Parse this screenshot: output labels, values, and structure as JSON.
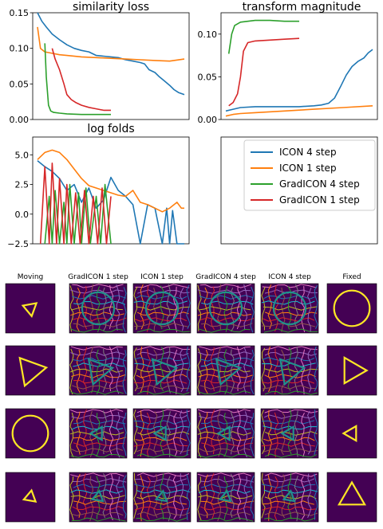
{
  "colors": {
    "icon4": "#1f77b4",
    "icon1": "#ff7f0e",
    "grad4": "#2ca02c",
    "grad1": "#d62728",
    "img_bg": "#440154",
    "img_fg": "#fde725",
    "img_mid": "#21918c",
    "grid_palette": [
      "#e377c2",
      "#9467bd",
      "#1f77b4",
      "#17becf",
      "#bcbd22",
      "#ff7f0e",
      "#d62728",
      "#8c564b",
      "#2ca02c",
      "#7f7f7f"
    ]
  },
  "chart_data": [
    {
      "type": "line",
      "title": "similarity loss",
      "xlabel": "",
      "ylabel": "",
      "ylim": [
        0,
        0.15
      ],
      "yticks": [
        {
          "v": 0,
          "label": "0.00"
        },
        {
          "v": 0.05,
          "label": "0.05"
        },
        {
          "v": 0.1,
          "label": "0.10"
        },
        {
          "v": 0.15,
          "label": "0.15"
        }
      ],
      "xlim": [
        0,
        1
      ],
      "grid": false,
      "series": [
        {
          "key": "icon4",
          "x": [
            0,
            0.03,
            0.06,
            0.1,
            0.15,
            0.2,
            0.25,
            0.3,
            0.35,
            0.4,
            0.45,
            0.5,
            0.55,
            0.6,
            0.65,
            0.7,
            0.73,
            0.76,
            0.8,
            0.83,
            0.86,
            0.9,
            0.93,
            0.96,
            1.0
          ],
          "y": [
            0.15,
            0.138,
            0.13,
            0.12,
            0.112,
            0.105,
            0.1,
            0.097,
            0.095,
            0.09,
            0.089,
            0.088,
            0.087,
            0.084,
            0.082,
            0.08,
            0.078,
            0.07,
            0.066,
            0.06,
            0.055,
            0.048,
            0.042,
            0.038,
            0.035
          ]
        },
        {
          "key": "icon1",
          "x": [
            0,
            0.02,
            0.05,
            0.1,
            0.15,
            0.2,
            0.3,
            0.4,
            0.5,
            0.6,
            0.7,
            0.8,
            0.9,
            1.0
          ],
          "y": [
            0.13,
            0.1,
            0.095,
            0.093,
            0.091,
            0.09,
            0.088,
            0.087,
            0.086,
            0.085,
            0.084,
            0.083,
            0.082,
            0.085
          ]
        },
        {
          "key": "grad4",
          "x": [
            0.05,
            0.06,
            0.075,
            0.09,
            0.11,
            0.15,
            0.2,
            0.3,
            0.4,
            0.5
          ],
          "y": [
            0.107,
            0.06,
            0.02,
            0.012,
            0.01,
            0.009,
            0.008,
            0.007,
            0.007,
            0.007
          ]
        },
        {
          "key": "grad1",
          "x": [
            0.1,
            0.12,
            0.15,
            0.18,
            0.2,
            0.23,
            0.26,
            0.3,
            0.35,
            0.4,
            0.45,
            0.5
          ],
          "y": [
            0.1,
            0.085,
            0.07,
            0.05,
            0.035,
            0.028,
            0.024,
            0.02,
            0.017,
            0.015,
            0.013,
            0.013
          ]
        }
      ]
    },
    {
      "type": "line",
      "title": "transform magnitude",
      "xlabel": "",
      "ylabel": "",
      "ylim": [
        0,
        0.125
      ],
      "yticks": [
        {
          "v": 0,
          "label": "0.00"
        },
        {
          "v": 0.05,
          "label": "0.05"
        },
        {
          "v": 0.1,
          "label": "0.10"
        }
      ],
      "xlim": [
        0,
        1
      ],
      "grid": false,
      "series": [
        {
          "key": "icon4",
          "x": [
            0,
            0.05,
            0.1,
            0.2,
            0.3,
            0.4,
            0.5,
            0.6,
            0.65,
            0.7,
            0.74,
            0.78,
            0.82,
            0.86,
            0.9,
            0.94,
            0.97,
            1.0
          ],
          "y": [
            0.01,
            0.012,
            0.014,
            0.015,
            0.015,
            0.015,
            0.015,
            0.016,
            0.017,
            0.019,
            0.025,
            0.038,
            0.052,
            0.062,
            0.068,
            0.072,
            0.078,
            0.082
          ]
        },
        {
          "key": "icon1",
          "x": [
            0,
            0.05,
            0.1,
            0.2,
            0.4,
            0.6,
            0.8,
            1.0
          ],
          "y": [
            0.004,
            0.006,
            0.007,
            0.008,
            0.01,
            0.012,
            0.014,
            0.016
          ]
        },
        {
          "key": "grad4",
          "x": [
            0.02,
            0.04,
            0.06,
            0.08,
            0.1,
            0.15,
            0.2,
            0.3,
            0.4,
            0.5
          ],
          "y": [
            0.077,
            0.1,
            0.11,
            0.112,
            0.114,
            0.115,
            0.116,
            0.116,
            0.115,
            0.115
          ]
        },
        {
          "key": "grad1",
          "x": [
            0.02,
            0.05,
            0.08,
            0.1,
            0.12,
            0.15,
            0.2,
            0.3,
            0.4,
            0.5
          ],
          "y": [
            0.016,
            0.02,
            0.03,
            0.05,
            0.08,
            0.09,
            0.092,
            0.093,
            0.094,
            0.095
          ]
        }
      ]
    },
    {
      "type": "line",
      "title": "log folds",
      "xlabel": "",
      "ylabel": "",
      "ylim": [
        -2.5,
        6.5
      ],
      "yticks": [
        {
          "v": -2.5,
          "label": "−2.5"
        },
        {
          "v": 0,
          "label": "0.0"
        },
        {
          "v": 2.5,
          "label": "2.5"
        },
        {
          "v": 5,
          "label": "5.0"
        }
      ],
      "xlim": [
        0,
        1
      ],
      "grid": false,
      "series": [
        {
          "key": "icon4",
          "x": [
            0,
            0.05,
            0.1,
            0.15,
            0.2,
            0.25,
            0.3,
            0.35,
            0.4,
            0.45,
            0.5,
            0.55,
            0.6,
            0.65,
            0.7,
            0.75,
            0.8,
            0.85,
            0.88,
            0.9,
            0.92,
            0.95,
            0.98,
            1.0
          ],
          "y": [
            4.5,
            4.0,
            3.6,
            3.0,
            2.0,
            2.5,
            1.0,
            2.2,
            0.5,
            1.2,
            3.1,
            2.0,
            1.5,
            0.8,
            -2.5,
            0.8,
            0.5,
            -2.5,
            0.5,
            -2.5,
            0.3,
            -2.5,
            -2.5,
            -2.5
          ]
        },
        {
          "key": "icon1",
          "x": [
            0,
            0.05,
            0.1,
            0.15,
            0.2,
            0.25,
            0.3,
            0.35,
            0.4,
            0.45,
            0.5,
            0.55,
            0.6,
            0.65,
            0.7,
            0.75,
            0.8,
            0.85,
            0.9,
            0.95,
            0.98,
            1.0
          ],
          "y": [
            4.6,
            5.2,
            5.4,
            5.2,
            4.6,
            3.8,
            3.0,
            2.4,
            2.2,
            2.0,
            1.8,
            1.6,
            1.5,
            2.0,
            1.0,
            0.8,
            0.5,
            0.2,
            0.5,
            1.0,
            0.5,
            0.5
          ]
        },
        {
          "key": "grad4",
          "x": [
            0.05,
            0.08,
            0.1,
            0.12,
            0.15,
            0.18,
            0.2,
            0.22,
            0.25,
            0.28,
            0.3,
            0.33,
            0.36,
            0.4,
            0.43,
            0.46,
            0.5
          ],
          "y": [
            -2.5,
            1.5,
            -2.5,
            2.0,
            -2.5,
            1.0,
            -2.5,
            2.5,
            -2.5,
            1.8,
            -2.5,
            2.2,
            -2.5,
            1.5,
            -2.5,
            2.5,
            -2.5
          ]
        },
        {
          "key": "grad1",
          "x": [
            0.02,
            0.05,
            0.08,
            0.1,
            0.13,
            0.15,
            0.18,
            0.2,
            0.23,
            0.26,
            0.29,
            0.32,
            0.35,
            0.38,
            0.41,
            0.44,
            0.47,
            0.5
          ],
          "y": [
            -2.5,
            4.0,
            -2.5,
            4.3,
            -2.5,
            3.0,
            -2.5,
            2.5,
            -2.5,
            1.8,
            -2.5,
            2.0,
            -2.5,
            1.5,
            -2.5,
            2.2,
            -2.5,
            1.5
          ]
        }
      ]
    }
  ],
  "legend": {
    "items": [
      {
        "key": "icon4",
        "label": "ICON 4 step"
      },
      {
        "key": "icon1",
        "label": "ICON 1 step"
      },
      {
        "key": "grad4",
        "label": "GradICON 4 step"
      },
      {
        "key": "grad1",
        "label": "GradICON 1 step"
      }
    ]
  },
  "grid_figure": {
    "columns": [
      {
        "label": "Moving",
        "kind": "plain"
      },
      {
        "label": "GradICON 1 step",
        "kind": "warp"
      },
      {
        "label": "ICON 1 step",
        "kind": "warp"
      },
      {
        "label": "GradICON 4 step",
        "kind": "warp"
      },
      {
        "label": "ICON 4 step",
        "kind": "warp"
      },
      {
        "label": "Fixed",
        "kind": "plain"
      }
    ],
    "rows": [
      {
        "moving": "triangle-small",
        "fixed": "circle"
      },
      {
        "moving": "triangle-large",
        "fixed": "triangle-right"
      },
      {
        "moving": "circle",
        "fixed": "triangle-small-left"
      },
      {
        "moving": "triangle-down-small",
        "fixed": "triangle-large-up"
      }
    ]
  }
}
